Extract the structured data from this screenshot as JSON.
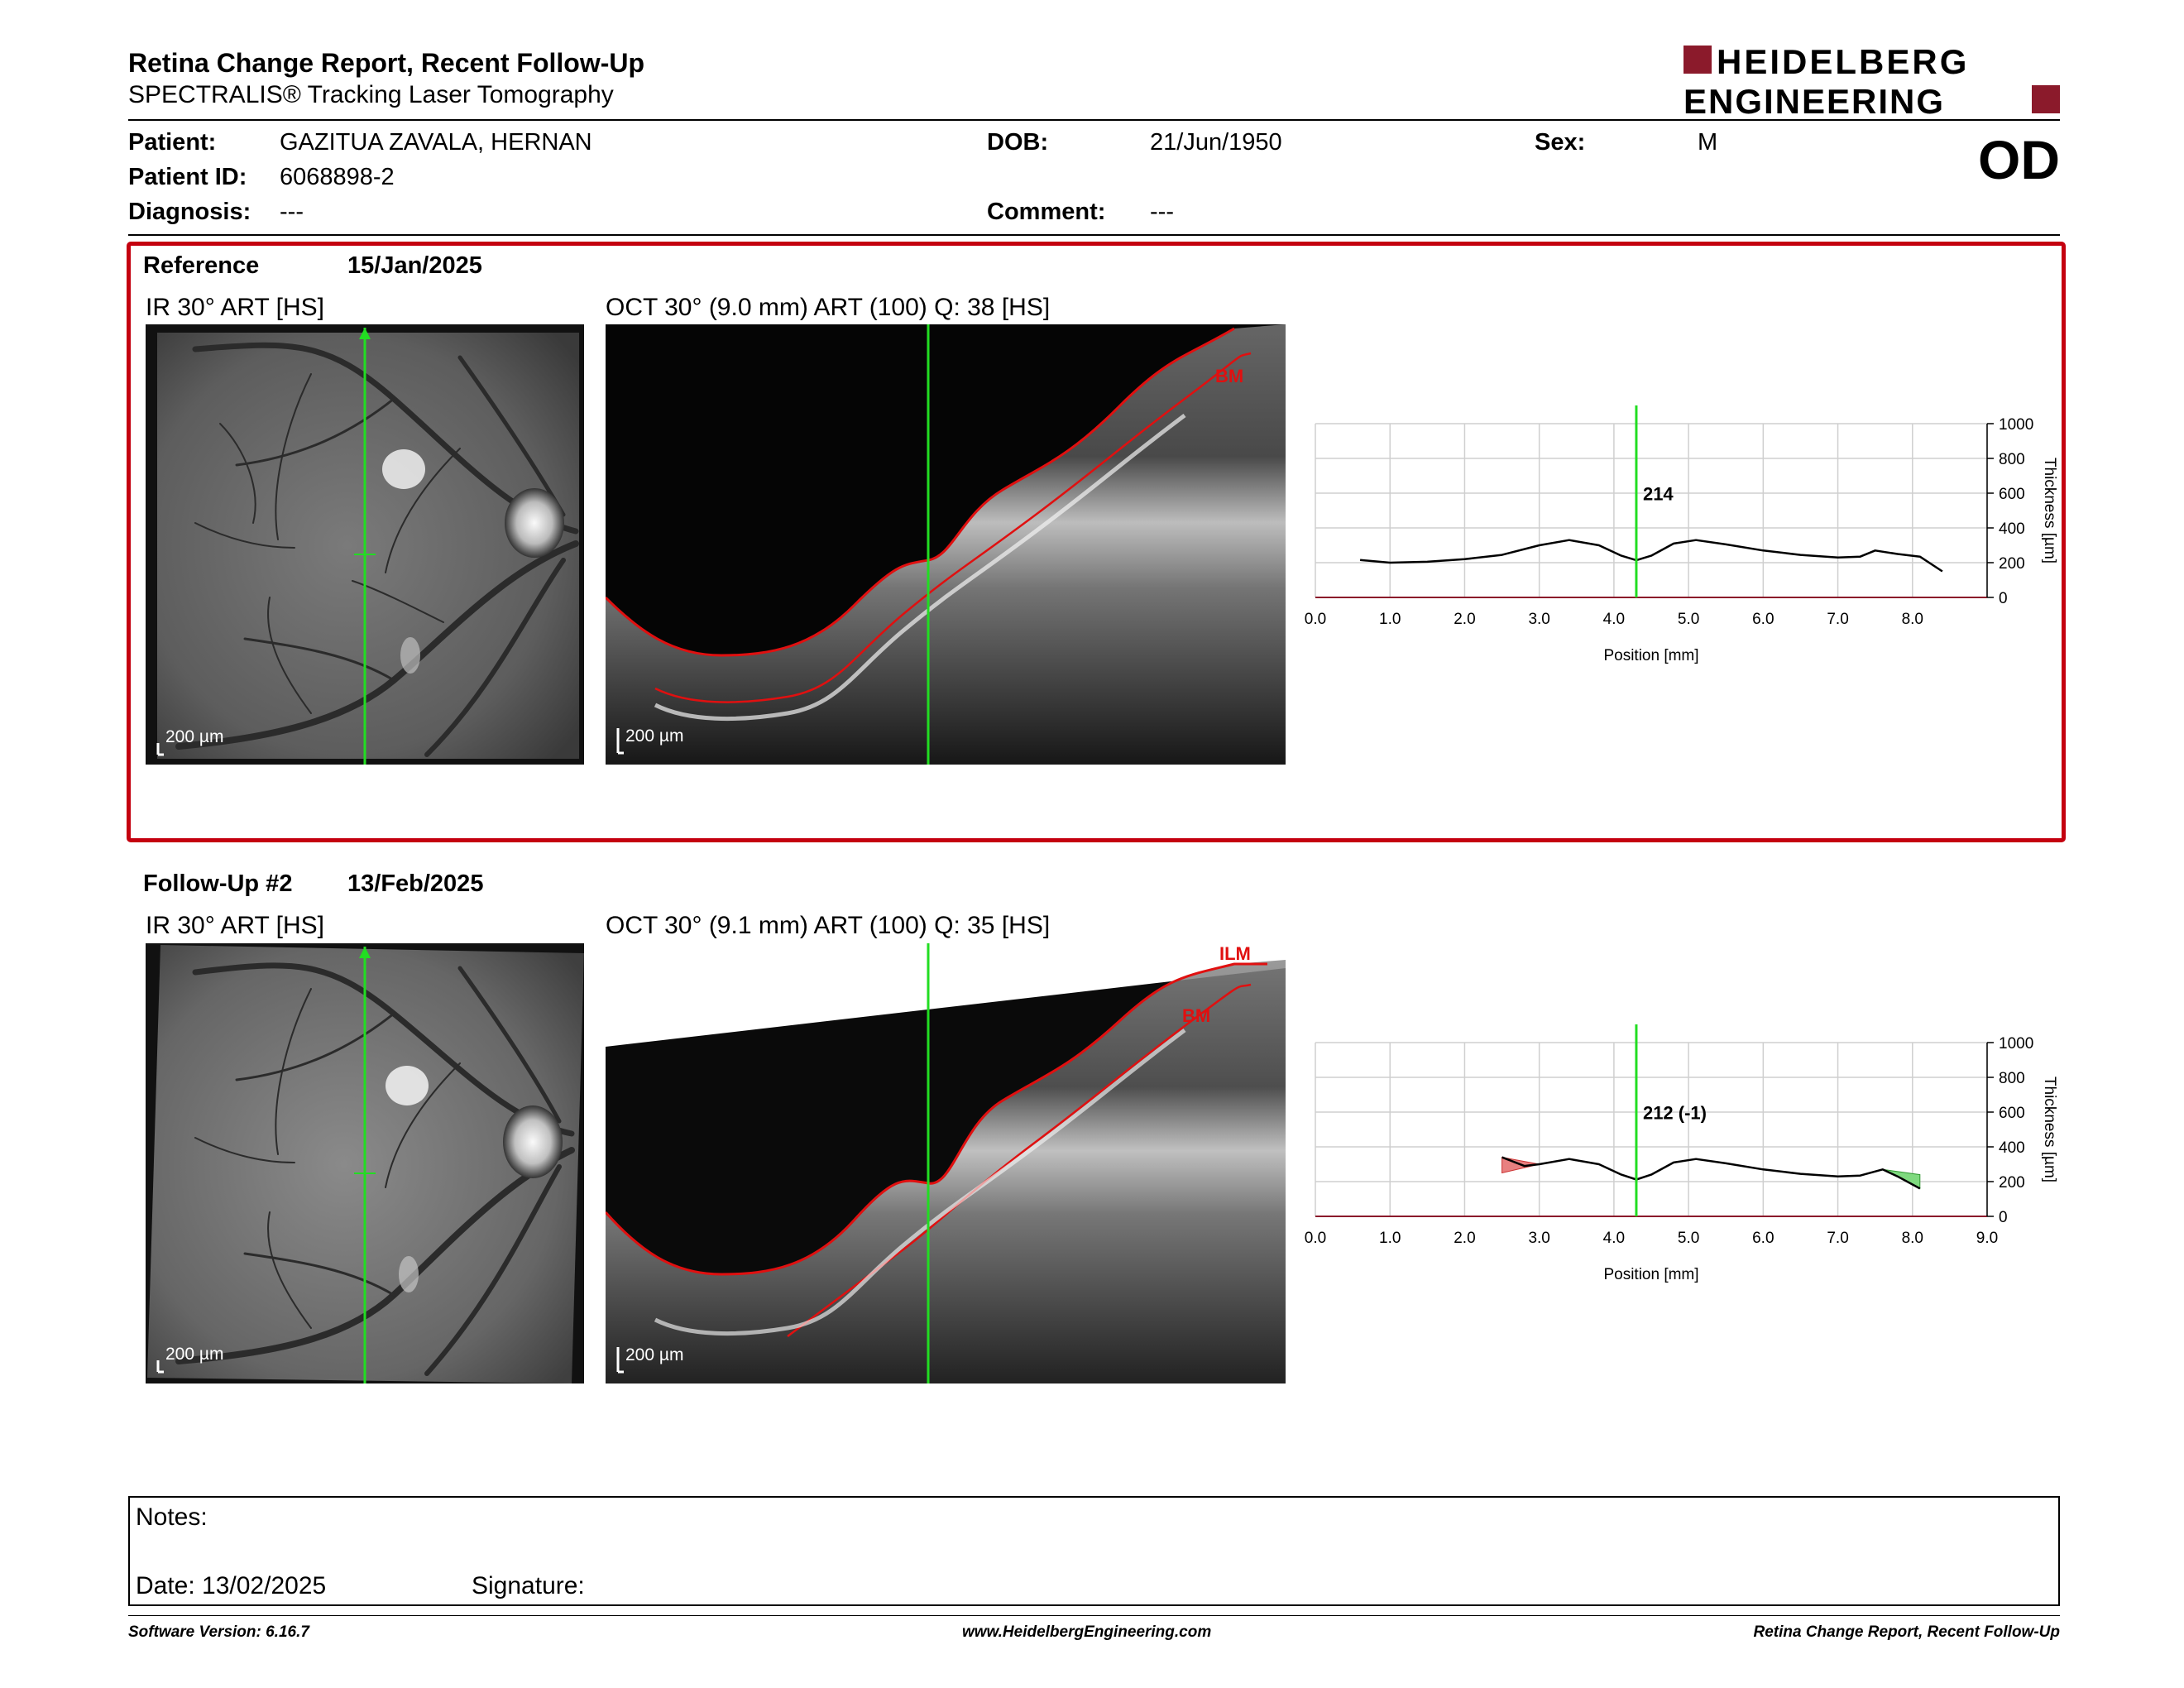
{
  "header": {
    "title": "Retina Change Report, Recent Follow-Up",
    "subtitle": "SPECTRALIS® Tracking Laser Tomography",
    "eye": "OD",
    "logo": {
      "line1": "HEIDELBERG",
      "line2": "ENGINEERING",
      "accent_color": "#8b1a2b"
    }
  },
  "patient": {
    "name_label": "Patient:",
    "name": "GAZITUA ZAVALA, HERNAN",
    "id_label": "Patient ID:",
    "id": "6068898-2",
    "diagnosis_label": "Diagnosis:",
    "diagnosis": "---",
    "dob_label": "DOB:",
    "dob": "21/Jun/1950",
    "comment_label": "Comment:",
    "comment": "---",
    "sex_label": "Sex:",
    "sex": "M"
  },
  "reference": {
    "label": "Reference",
    "date": "15/Jan/2025",
    "ir_caption": "IR 30° ART [HS]",
    "oct_caption": "OCT 30° (9.0 mm) ART (100) Q: 38 [HS]",
    "scale_ir": "200 µm",
    "scale_oct": "200 µm",
    "layer_bm": "BM"
  },
  "followup": {
    "label": "Follow-Up #2",
    "date": "13/Feb/2025",
    "ir_caption": "IR 30° ART [HS]",
    "oct_caption": "OCT 30° (9.1 mm) ART (100) Q: 35 [HS]",
    "scale_ir": "200 µm",
    "scale_oct": "200 µm",
    "layer_ilm": "ILM",
    "layer_bm": "BM"
  },
  "colors": {
    "frame_red": "#c4000f",
    "marker_green": "#22dd22",
    "layer_red": "#e01010",
    "thicker": "#e88080",
    "thinner": "#7fd97f"
  },
  "chart_data": [
    {
      "type": "line",
      "xlabel": "Position [mm]",
      "ylabel": "Thickness [µm]",
      "xlim": [
        0,
        9
      ],
      "ylim": [
        0,
        1000
      ],
      "x_ticks": [
        "0.0",
        "1.0",
        "2.0",
        "3.0",
        "4.0",
        "5.0",
        "6.0",
        "7.0",
        "8.0"
      ],
      "y_ticks": [
        "0",
        "200",
        "400",
        "600",
        "800",
        "1000"
      ],
      "marker_x": 4.3,
      "marker_label": "214",
      "grid": true,
      "series": [
        {
          "x": [
            0.6,
            1.0,
            1.5,
            2.0,
            2.5,
            3.0,
            3.4,
            3.8,
            4.1,
            4.3,
            4.5,
            4.8,
            5.1,
            5.5,
            6.0,
            6.5,
            7.0,
            7.3,
            7.5,
            7.8,
            8.1,
            8.4
          ],
          "values": [
            215,
            200,
            205,
            220,
            245,
            300,
            330,
            300,
            240,
            214,
            240,
            310,
            330,
            305,
            270,
            245,
            230,
            235,
            270,
            250,
            235,
            150
          ]
        }
      ]
    },
    {
      "type": "line",
      "xlabel": "Position [mm]",
      "ylabel": "Thickness [µm]",
      "xlim": [
        0,
        9
      ],
      "ylim": [
        0,
        1000
      ],
      "x_ticks": [
        "0.0",
        "1.0",
        "2.0",
        "3.0",
        "4.0",
        "5.0",
        "6.0",
        "7.0",
        "8.0",
        "9.0"
      ],
      "y_ticks": [
        "0",
        "200",
        "400",
        "600",
        "800",
        "1000"
      ],
      "marker_x": 4.3,
      "marker_label": "212 (-1)",
      "grid": true,
      "series": [
        {
          "x": [
            2.5,
            2.8,
            3.0,
            3.4,
            3.8,
            4.1,
            4.3,
            4.5,
            4.8,
            5.1,
            5.5,
            6.0,
            6.5,
            7.0,
            7.3,
            7.6,
            7.8,
            8.1
          ],
          "values": [
            340,
            290,
            300,
            330,
            300,
            240,
            212,
            240,
            310,
            330,
            305,
            270,
            245,
            230,
            235,
            270,
            230,
            160
          ]
        }
      ]
    }
  ],
  "notes": {
    "label": "Notes:",
    "date_label": "Date: 13/02/2025",
    "signature_label": "Signature:"
  },
  "footer": {
    "software": "Software Version: 6.16.7",
    "url": "www.HeidelbergEngineering.com",
    "report": "Retina Change Report, Recent Follow-Up"
  }
}
